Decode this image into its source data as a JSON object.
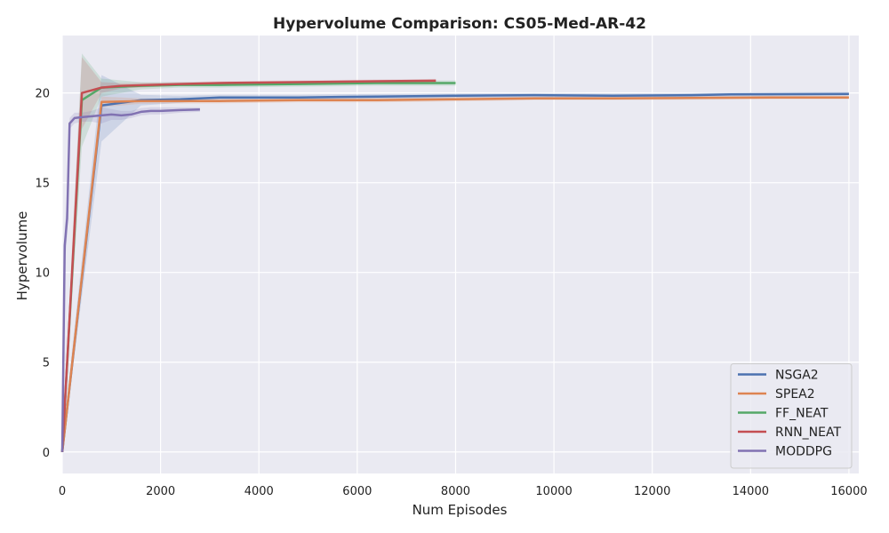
{
  "chart_data": {
    "type": "line",
    "title": "Hypervolume Comparison: CS05-Med-AR-42",
    "xlabel": "Num Episodes",
    "ylabel": "Hypervolume",
    "xlim": [
      0,
      16200
    ],
    "ylim": [
      -1.2,
      23.2
    ],
    "xticks": [
      0,
      2000,
      4000,
      6000,
      8000,
      10000,
      12000,
      14000,
      16000
    ],
    "yticks": [
      0,
      5,
      10,
      15,
      20
    ],
    "grid": true,
    "legend_position": "bottom-right",
    "colors": {
      "background": "#eaeaf2",
      "grid": "#ffffff"
    },
    "series": [
      {
        "name": "NSGA2",
        "color": "#4c72b0",
        "x": [
          0,
          800,
          1600,
          2400,
          3200,
          4800,
          6400,
          8000,
          9600,
          11200,
          12800,
          13600,
          16000
        ],
        "y": [
          0,
          19.3,
          19.6,
          19.65,
          19.75,
          19.75,
          19.8,
          19.85,
          19.88,
          19.85,
          19.88,
          19.92,
          19.95
        ],
        "band_upper": [
          0.5,
          21.0,
          19.9,
          19.85,
          19.9,
          19.9,
          19.95,
          19.98,
          20.0,
          19.98,
          20.0,
          20.03,
          20.05
        ],
        "band_lower": [
          0,
          17.3,
          19.3,
          19.45,
          19.6,
          19.6,
          19.65,
          19.72,
          19.76,
          19.72,
          19.76,
          19.81,
          19.85
        ]
      },
      {
        "name": "SPEA2",
        "color": "#dd8452",
        "x": [
          0,
          800,
          1600,
          3200,
          4800,
          6400,
          8000,
          9600,
          11200,
          12800,
          14400,
          16000
        ],
        "y": [
          0,
          19.5,
          19.55,
          19.55,
          19.6,
          19.6,
          19.65,
          19.7,
          19.7,
          19.72,
          19.75,
          19.75
        ],
        "band_upper": [
          0.3,
          19.8,
          19.7,
          19.68,
          19.72,
          19.72,
          19.77,
          19.8,
          19.8,
          19.82,
          19.85,
          19.85
        ],
        "band_lower": [
          0,
          19.2,
          19.4,
          19.42,
          19.48,
          19.48,
          19.53,
          19.6,
          19.6,
          19.62,
          19.65,
          19.65
        ]
      },
      {
        "name": "FF_NEAT",
        "color": "#55a868",
        "x": [
          0,
          400,
          800,
          1600,
          2400,
          3200,
          4800,
          6400,
          8000
        ],
        "y": [
          0,
          19.6,
          20.3,
          20.4,
          20.45,
          20.45,
          20.5,
          20.55,
          20.55
        ],
        "band_upper": [
          0.5,
          22.2,
          20.8,
          20.6,
          20.6,
          20.6,
          20.65,
          20.7,
          20.7
        ],
        "band_lower": [
          0,
          17.0,
          19.8,
          20.2,
          20.3,
          20.3,
          20.35,
          20.4,
          20.4
        ]
      },
      {
        "name": "RNN_NEAT",
        "color": "#c44e52",
        "x": [
          0,
          400,
          800,
          1200,
          2400,
          3200,
          4800,
          6400,
          7600
        ],
        "y": [
          0,
          20.0,
          20.3,
          20.4,
          20.5,
          20.55,
          20.6,
          20.65,
          20.68
        ],
        "band_upper": [
          0.5,
          22.0,
          20.6,
          20.55,
          20.6,
          20.65,
          20.7,
          20.75,
          20.78
        ],
        "band_lower": [
          0,
          18.0,
          20.0,
          20.25,
          20.4,
          20.45,
          20.5,
          20.55,
          20.58
        ]
      },
      {
        "name": "MODDPG",
        "color": "#8172b2",
        "x": [
          0,
          50,
          100,
          150,
          250,
          400,
          600,
          800,
          1000,
          1200,
          1400,
          1600,
          1800,
          2000,
          2400,
          2800
        ],
        "y": [
          0,
          11.5,
          13.0,
          18.3,
          18.6,
          18.65,
          18.7,
          18.75,
          18.8,
          18.75,
          18.8,
          18.95,
          19.0,
          19.0,
          19.05,
          19.08
        ],
        "band_upper": [
          0.2,
          12.5,
          14.0,
          18.6,
          18.9,
          18.9,
          19.0,
          19.2,
          19.1,
          19.0,
          19.0,
          19.15,
          19.2,
          19.2,
          19.2,
          19.2
        ],
        "band_lower": [
          0,
          10.5,
          12.0,
          18.0,
          18.3,
          18.4,
          18.4,
          18.3,
          18.5,
          18.5,
          18.6,
          18.75,
          18.8,
          18.8,
          18.9,
          18.95
        ]
      }
    ]
  }
}
